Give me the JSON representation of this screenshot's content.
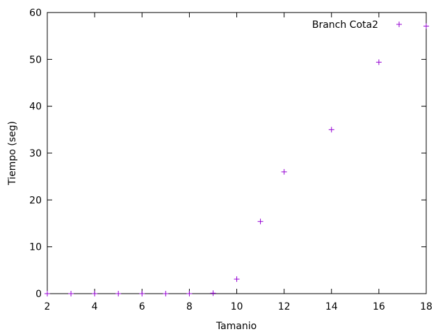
{
  "chart_data": {
    "type": "scatter",
    "xlabel": "Tamanio",
    "ylabel": "Tiempo (seg)",
    "xlim": [
      2,
      18
    ],
    "ylim": [
      0,
      60
    ],
    "xticks": [
      2,
      4,
      6,
      8,
      10,
      12,
      14,
      16,
      18
    ],
    "yticks": [
      0,
      10,
      20,
      30,
      40,
      50,
      60
    ],
    "xtick_labels": [
      "2",
      "4",
      "6",
      "8",
      "10",
      "12",
      "14",
      "16",
      "18"
    ],
    "ytick_labels": [
      "0",
      "10",
      "20",
      "30",
      "40",
      "50",
      "60"
    ],
    "grid": false,
    "legend_position": "top-right",
    "series": [
      {
        "name": "Branch Cota2",
        "color": "#9400d3",
        "marker": "plus",
        "x": [
          2,
          3,
          4,
          5,
          6,
          7,
          8,
          9,
          10,
          11,
          12,
          14,
          16,
          18
        ],
        "y": [
          0,
          0,
          0,
          0,
          0,
          0,
          0,
          0.1,
          3.1,
          15.4,
          26,
          35,
          49.4,
          57.1
        ]
      }
    ]
  }
}
